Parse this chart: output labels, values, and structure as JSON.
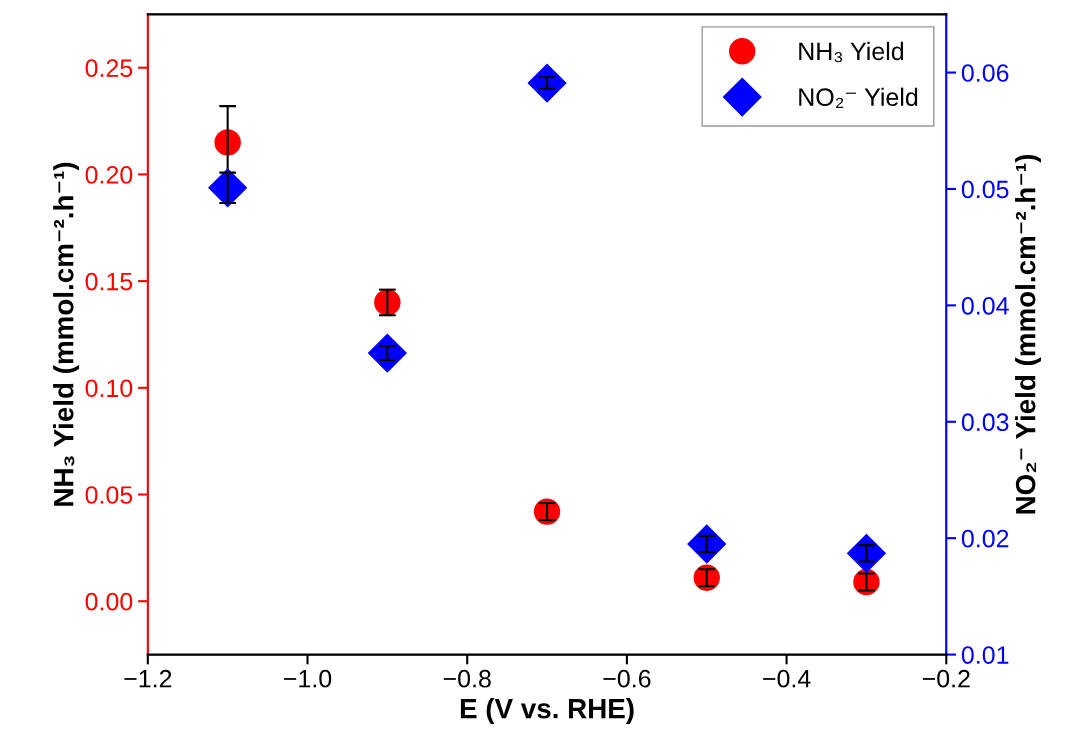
{
  "chart_data": {
    "type": "scatter",
    "xlabel": "E (V vs. RHE)",
    "ylabel": "NH₃ Yield (mmol.cm⁻².h⁻¹)",
    "y2label": "NO₂⁻ Yield (mmol.cm⁻².h⁻¹)",
    "x": [
      -1.1,
      -0.9,
      -0.7,
      -0.5,
      -0.3
    ],
    "series": [
      {
        "name": "NH₃ Yield",
        "color": "#ff0000",
        "marker": "circle",
        "values": [
          0.215,
          0.14,
          0.042,
          0.011,
          0.009
        ],
        "errors": [
          0.017,
          0.006,
          0.004,
          0.004,
          0.004
        ]
      },
      {
        "name": "NO₂⁻ Yield",
        "color": "#0000ff",
        "marker": "diamond",
        "axis": "y2",
        "values": [
          0.0501,
          0.0359,
          0.0591,
          0.0195,
          0.0187
        ],
        "errors": [
          0.0013,
          0.0006,
          0.0005,
          0.0007,
          0.0007
        ]
      }
    ],
    "xlim": [
      -1.2,
      -0.2
    ],
    "xticks": [
      {
        "value": -1.2,
        "label": "−1.2"
      },
      {
        "value": -1.0,
        "label": "−1.0"
      },
      {
        "value": -0.8,
        "label": "−0.8"
      },
      {
        "value": -0.6,
        "label": "−0.6"
      },
      {
        "value": -0.4,
        "label": "−0.4"
      },
      {
        "value": -0.2,
        "label": "−0.2"
      }
    ],
    "ylim": [
      -0.025,
      0.275
    ],
    "yticks": [
      {
        "value": 0,
        "label": "0.00"
      },
      {
        "value": 0.05,
        "label": "0.05"
      },
      {
        "value": 0.1,
        "label": "0.10"
      },
      {
        "value": 0.15,
        "label": "0.15"
      },
      {
        "value": 0.2,
        "label": "0.20"
      },
      {
        "value": 0.25,
        "label": "0.25"
      }
    ],
    "y2lim": [
      0.01,
      0.065
    ],
    "y2ticks": [
      0.01,
      0.02,
      0.03,
      0.04,
      0.05,
      0.06
    ],
    "legend": "top right",
    "grid": false
  }
}
